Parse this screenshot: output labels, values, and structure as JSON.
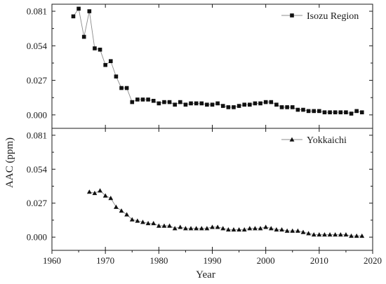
{
  "chart_data": {
    "type": "line",
    "xlabel": "Year",
    "ylabel": "AAC (ppm)",
    "xlim": [
      1960,
      2020
    ],
    "x_ticks": [
      1960,
      1970,
      1980,
      1990,
      2000,
      2010,
      2020
    ],
    "x_tick_labels": [
      "1960",
      "1970",
      "1980",
      "1990",
      "2000",
      "2010",
      "2020"
    ],
    "panels": [
      {
        "ylim": [
          -0.0105,
          0.0865
        ],
        "y_ticks": [
          0.0,
          0.027,
          0.054,
          0.081
        ],
        "y_tick_labels": [
          "0.000",
          "0.027",
          "0.054",
          "0.081"
        ],
        "legend_position": "top-right",
        "series": [
          {
            "name": "Isozu Region",
            "marker": "square",
            "x": [
              1964,
              1965,
              1966,
              1967,
              1968,
              1969,
              1970,
              1971,
              1972,
              1973,
              1974,
              1975,
              1976,
              1977,
              1978,
              1979,
              1980,
              1981,
              1982,
              1983,
              1984,
              1985,
              1986,
              1987,
              1988,
              1989,
              1990,
              1991,
              1992,
              1993,
              1994,
              1995,
              1996,
              1997,
              1998,
              1999,
              2000,
              2001,
              2002,
              2003,
              2004,
              2005,
              2006,
              2007,
              2008,
              2009,
              2010,
              2011,
              2012,
              2013,
              2014,
              2015,
              2016,
              2017,
              2018
            ],
            "y": [
              0.077,
              0.083,
              0.061,
              0.081,
              0.052,
              0.051,
              0.039,
              0.042,
              0.03,
              0.021,
              0.021,
              0.01,
              0.012,
              0.012,
              0.012,
              0.011,
              0.009,
              0.01,
              0.01,
              0.008,
              0.01,
              0.008,
              0.009,
              0.009,
              0.009,
              0.008,
              0.008,
              0.009,
              0.007,
              0.006,
              0.006,
              0.007,
              0.008,
              0.008,
              0.009,
              0.009,
              0.01,
              0.01,
              0.008,
              0.006,
              0.006,
              0.006,
              0.004,
              0.004,
              0.003,
              0.003,
              0.003,
              0.002,
              0.002,
              0.002,
              0.002,
              0.002,
              0.001,
              0.003,
              0.002
            ]
          }
        ]
      },
      {
        "ylim": [
          -0.0105,
          0.0865
        ],
        "y_ticks": [
          0.0,
          0.027,
          0.054,
          0.081
        ],
        "y_tick_labels": [
          "0.000",
          "0.027",
          "0.054",
          "0.081"
        ],
        "legend_position": "top-right",
        "series": [
          {
            "name": "Yokkaichi",
            "marker": "triangle",
            "x": [
              1967,
              1968,
              1969,
              1970,
              1971,
              1972,
              1973,
              1974,
              1975,
              1976,
              1977,
              1978,
              1979,
              1980,
              1981,
              1982,
              1983,
              1984,
              1985,
              1986,
              1987,
              1988,
              1989,
              1990,
              1991,
              1992,
              1993,
              1994,
              1995,
              1996,
              1997,
              1998,
              1999,
              2000,
              2001,
              2002,
              2003,
              2004,
              2005,
              2006,
              2007,
              2008,
              2009,
              2010,
              2011,
              2012,
              2013,
              2014,
              2015,
              2016,
              2017,
              2018
            ],
            "y": [
              0.036,
              0.035,
              0.037,
              0.033,
              0.031,
              0.024,
              0.021,
              0.018,
              0.014,
              0.013,
              0.012,
              0.011,
              0.011,
              0.009,
              0.009,
              0.009,
              0.007,
              0.008,
              0.007,
              0.007,
              0.007,
              0.007,
              0.007,
              0.008,
              0.008,
              0.007,
              0.006,
              0.006,
              0.006,
              0.006,
              0.007,
              0.007,
              0.007,
              0.008,
              0.007,
              0.006,
              0.006,
              0.005,
              0.005,
              0.005,
              0.004,
              0.003,
              0.002,
              0.002,
              0.002,
              0.002,
              0.002,
              0.002,
              0.002,
              0.001,
              0.001,
              0.001
            ]
          }
        ]
      }
    ]
  }
}
